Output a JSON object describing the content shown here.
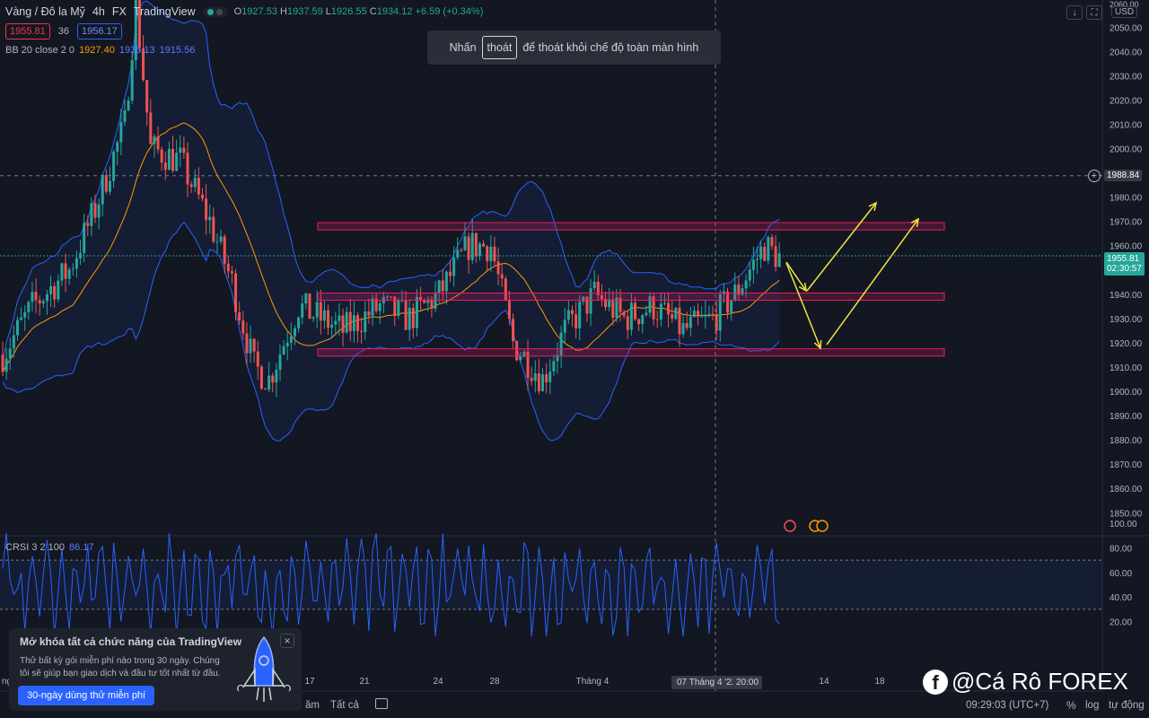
{
  "header": {
    "symbol": "Vàng / Đô la Mỹ",
    "timeframe": "4h",
    "exchange": "FX",
    "source": "TradingView",
    "ohlc": {
      "o_label": "O",
      "o": "1927.53",
      "h_label": "H",
      "h": "1937.59",
      "l_label": "L",
      "l": "1926.55",
      "c_label": "C",
      "c": "1934.12",
      "change": "+6.59 (+0.34%)"
    }
  },
  "prices": {
    "sell": "1955.81",
    "spread": "36",
    "buy": "1956.17"
  },
  "bb_legend": {
    "name": "BB 20 close 2 0",
    "basis": "1927.40",
    "upper": "1936.13",
    "lower": "1915.56"
  },
  "fullscreen_hint": {
    "prefix": "Nhấn",
    "key": "thoát",
    "suffix": "để thoát khỏi chế độ toàn màn hình"
  },
  "top_right": {
    "currency": "USD",
    "arrow_down": "↓",
    "expand": "⛶"
  },
  "price_axis": {
    "labels": [
      "2050.00",
      "2040.00",
      "2030.00",
      "2020.00",
      "2010.00",
      "2000.00",
      "1990.00",
      "1980.00",
      "1970.00",
      "1960.00",
      "1950.00",
      "1940.00",
      "1930.00",
      "1920.00",
      "1910.00",
      "1900.00",
      "1890.00",
      "1880.00",
      "1870.00",
      "1860.00",
      "1850.00"
    ],
    "top_partial": "2060.00",
    "crosshair_price": "1988.84",
    "last_price": "1955.81",
    "countdown": "02:30:57"
  },
  "crsi": {
    "name": "CRSI 3 2 100",
    "value": "86.17",
    "axis": [
      "100.00",
      "80.00",
      "60.00",
      "40.00",
      "20.00"
    ]
  },
  "time_axis": {
    "labels": [
      "17",
      "21",
      "24",
      "28",
      "Tháng 4",
      "14",
      "18"
    ],
    "left_partial": "ng",
    "crosshair_date": "07 Tháng 4 '22",
    "crosshair_time": "20:00"
  },
  "promo": {
    "title": "Mở khóa tất cả chức năng của TradingView",
    "body": "Thử bất kỳ gói miễn phí nào trong 30 ngày. Chúng tôi sẽ giúp bạn giao dịch và đầu tư tốt nhất từ đầu.",
    "cta": "30-ngày dùng thử miễn phí",
    "close": "×"
  },
  "bottom_bar": {
    "range_1": "ăm",
    "range_2": "Tất cả",
    "clock": "09:29:03 (UTC+7)",
    "percent": "%",
    "log": "log",
    "auto": "tự động"
  },
  "brand": {
    "fb": "f",
    "text": "@Cá Rô FOREX"
  },
  "colors": {
    "background": "#131722",
    "up": "#26a69a",
    "down": "#ef5350",
    "bb_band": "#2962ff",
    "bb_basis": "#ff9800",
    "zone": "#e91e63",
    "arrow": "#f0e442"
  },
  "zones": [
    {
      "top": 1969.5,
      "bottom": 1966.5,
      "from_bar": 70,
      "to_bar": 210
    },
    {
      "top": 1940.5,
      "bottom": 1937.5,
      "from_bar": 70,
      "to_bar": 210
    },
    {
      "top": 1917.5,
      "bottom": 1914.5,
      "from_bar": 70,
      "to_bar": 210
    }
  ]
}
